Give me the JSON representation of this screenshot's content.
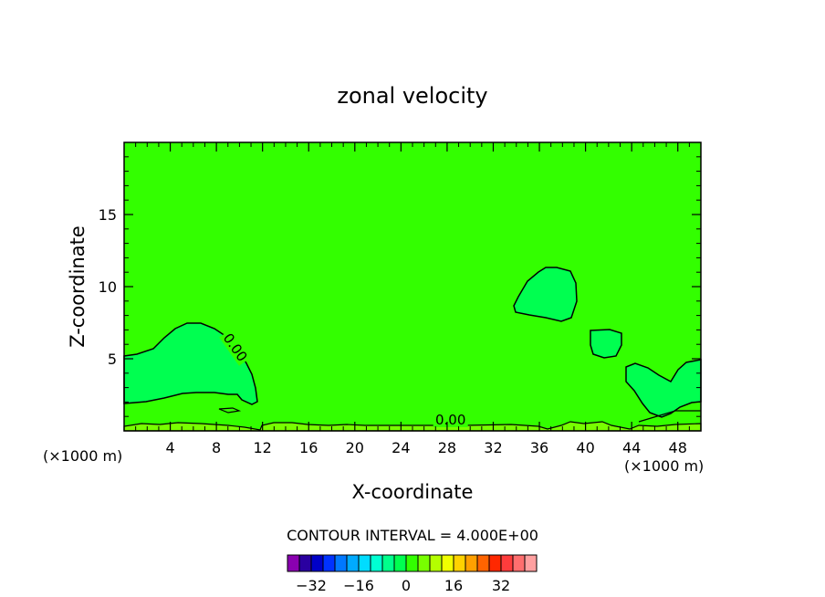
{
  "chart_data": {
    "type": "contour",
    "title": "zonal velocity",
    "xlabel": "X-coordinate",
    "ylabel": "Z-coordinate",
    "x_unit_label_left": "(×1000 m)",
    "x_unit_label_right": "(×1000 m)",
    "xlim": [
      0,
      50
    ],
    "ylim": [
      0,
      20
    ],
    "x_ticks": [
      4,
      8,
      12,
      16,
      20,
      24,
      28,
      32,
      36,
      40,
      44,
      48
    ],
    "y_ticks": [
      5,
      10,
      15
    ],
    "field_value_range": [
      -36,
      36
    ],
    "background_value_band": [
      0,
      4
    ],
    "contour_labels": [
      {
        "text": "0.00",
        "x": 9.3,
        "z": 5.6
      },
      {
        "text": "0.00",
        "x": 28.3,
        "z": 0.45
      }
    ],
    "contour_interval_text": "CONTOUR INTERVAL = 4.000E+00",
    "contour_interval": 4,
    "colorbar": {
      "colors": [
        "#8a00b0",
        "#2a00a0",
        "#0000c8",
        "#0032ff",
        "#0078ff",
        "#00aaff",
        "#00dcff",
        "#00ffd2",
        "#00ff8c",
        "#00ff50",
        "#32ff00",
        "#78ff00",
        "#b4ff00",
        "#f0ff00",
        "#ffd200",
        "#ffa000",
        "#ff6400",
        "#ff2800",
        "#ff3c3c",
        "#ff6e6e",
        "#ffa0a0"
      ],
      "tick_labels": [
        "−32",
        "−16",
        "0",
        "16",
        "32"
      ],
      "tick_values": [
        -32,
        -16,
        0,
        16,
        32
      ],
      "min": -40,
      "max": 44
    },
    "colors": {
      "background_fill": "#33ff00",
      "negative_region_fill": "#00ff50",
      "near_surface_fill": "#78ff00",
      "contour_line": "#000000"
    }
  }
}
